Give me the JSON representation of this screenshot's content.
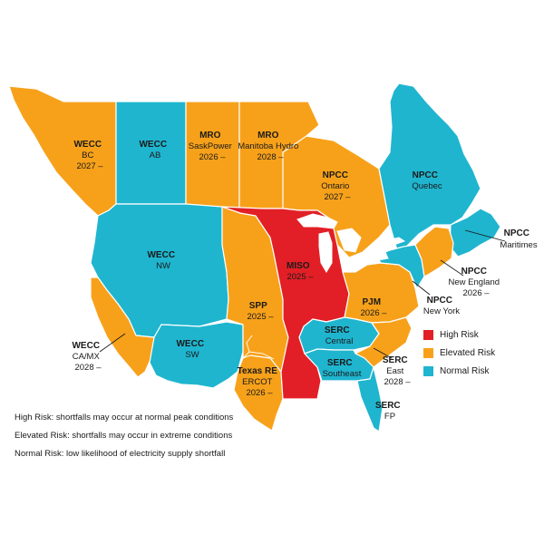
{
  "colors": {
    "high": "#e21f26",
    "elevated": "#f7a11a",
    "normal": "#1fb5cf"
  },
  "labels": {
    "wecc_bc": {
      "title": "WECC",
      "name": "BC",
      "year": "2027 –"
    },
    "wecc_ab": {
      "title": "WECC",
      "name": "AB"
    },
    "mro_sask": {
      "title": "MRO",
      "name": "SaskPower",
      "year": "2026 –"
    },
    "mro_manitoba": {
      "title": "MRO",
      "name": "Manitoba Hydro",
      "year": "2028 –"
    },
    "npcc_ontario": {
      "title": "NPCC",
      "name": "Ontario",
      "year": "2027 –"
    },
    "npcc_quebec": {
      "title": "NPCC",
      "name": "Quebec"
    },
    "npcc_maritimes": {
      "title": "NPCC",
      "name": "Maritimes"
    },
    "npcc_ne": {
      "title": "NPCC",
      "name": "New England",
      "year": "2026 –"
    },
    "npcc_ny": {
      "title": "NPCC",
      "name": "New York"
    },
    "wecc_nw": {
      "title": "WECC",
      "name": "NW"
    },
    "miso": {
      "title": "MISO",
      "year": "2025 –"
    },
    "spp": {
      "title": "SPP",
      "year": "2025 –"
    },
    "pjm": {
      "title": "PJM",
      "year": "2026 –"
    },
    "wecc_camx": {
      "title": "WECC",
      "name": "CA/MX",
      "year": "2028 –"
    },
    "wecc_sw": {
      "title": "WECC",
      "name": "SW"
    },
    "serc_central": {
      "title": "SERC",
      "name": "Central"
    },
    "serc_east": {
      "title": "SERC",
      "name": "East",
      "year": "2028 –"
    },
    "serc_southeast": {
      "title": "SERC",
      "name": "Southeast"
    },
    "texas_re": {
      "title": "Texas RE",
      "name": "ERCOT",
      "year": "2026 –"
    },
    "serc_fp": {
      "title": "SERC",
      "name": "FP"
    }
  },
  "legend": [
    {
      "label": "High Risk",
      "color": "#e21f26"
    },
    {
      "label": "Elevated Risk",
      "color": "#f7a11a"
    },
    {
      "label": "Normal Risk",
      "color": "#1fb5cf"
    }
  ],
  "notes": [
    "High Risk: shortfalls may occur at normal peak conditions",
    "Elevated Risk: shortfalls may occur in extreme conditions",
    "Normal Risk: low likelihood of electricity supply shortfall"
  ]
}
